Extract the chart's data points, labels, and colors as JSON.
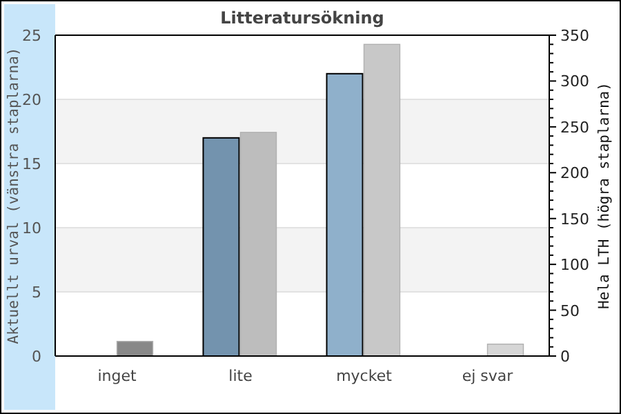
{
  "chart_data": {
    "type": "bar",
    "title": "Litteratursökning",
    "ylabel": "Aktuellt urval (vänstra staplarna)",
    "y2label": "Hela LTH (högra staplarna)",
    "categories": [
      "inget",
      "lite",
      "mycket",
      "ej svar"
    ],
    "series": [
      {
        "colors": [
          "#7393ae",
          "#7393ae",
          "#8fb0cb",
          "#8fb0cb"
        ],
        "values": [
          0,
          17,
          22,
          0
        ]
      },
      {
        "axis": "y2",
        "colors": [
          "#888888",
          "#bdbdbd",
          "#c8c8c8",
          "#d6d6d6"
        ],
        "values": [
          16,
          244,
          340,
          13
        ]
      }
    ],
    "ylim": [
      0,
      25
    ],
    "yticks": [
      0,
      5,
      10,
      15,
      20,
      25
    ],
    "y2lim": [
      0,
      350
    ],
    "y2ticks": [
      0,
      {
        "value": 10,
        "label": null
      },
      {
        "value": 20,
        "label": null
      },
      {
        "value": 30,
        "label": null
      },
      {
        "value": 40,
        "label": null
      },
      50,
      {
        "value": 60,
        "label": null
      },
      {
        "value": 70,
        "label": null
      },
      {
        "value": 80,
        "label": null
      },
      {
        "value": 90,
        "label": null
      },
      100,
      {
        "value": 110,
        "label": null
      },
      {
        "value": 120,
        "label": null
      },
      {
        "value": 130,
        "label": null
      },
      {
        "value": 140,
        "label": null
      },
      150,
      {
        "value": 160,
        "label": null
      },
      {
        "value": 170,
        "label": null
      },
      {
        "value": 180,
        "label": null
      },
      {
        "value": 190,
        "label": null
      },
      200,
      {
        "value": 210,
        "label": null
      },
      {
        "value": 220,
        "label": null
      },
      {
        "value": 230,
        "label": null
      },
      {
        "value": 240,
        "label": null
      },
      250,
      {
        "value": 260,
        "label": null
      },
      {
        "value": 270,
        "label": null
      },
      {
        "value": 280,
        "label": null
      },
      {
        "value": 290,
        "label": null
      },
      300,
      {
        "value": 310,
        "label": null
      },
      {
        "value": 320,
        "label": null
      },
      {
        "value": 330,
        "label": null
      },
      {
        "value": 340,
        "label": null
      },
      350
    ],
    "grid": "y"
  }
}
